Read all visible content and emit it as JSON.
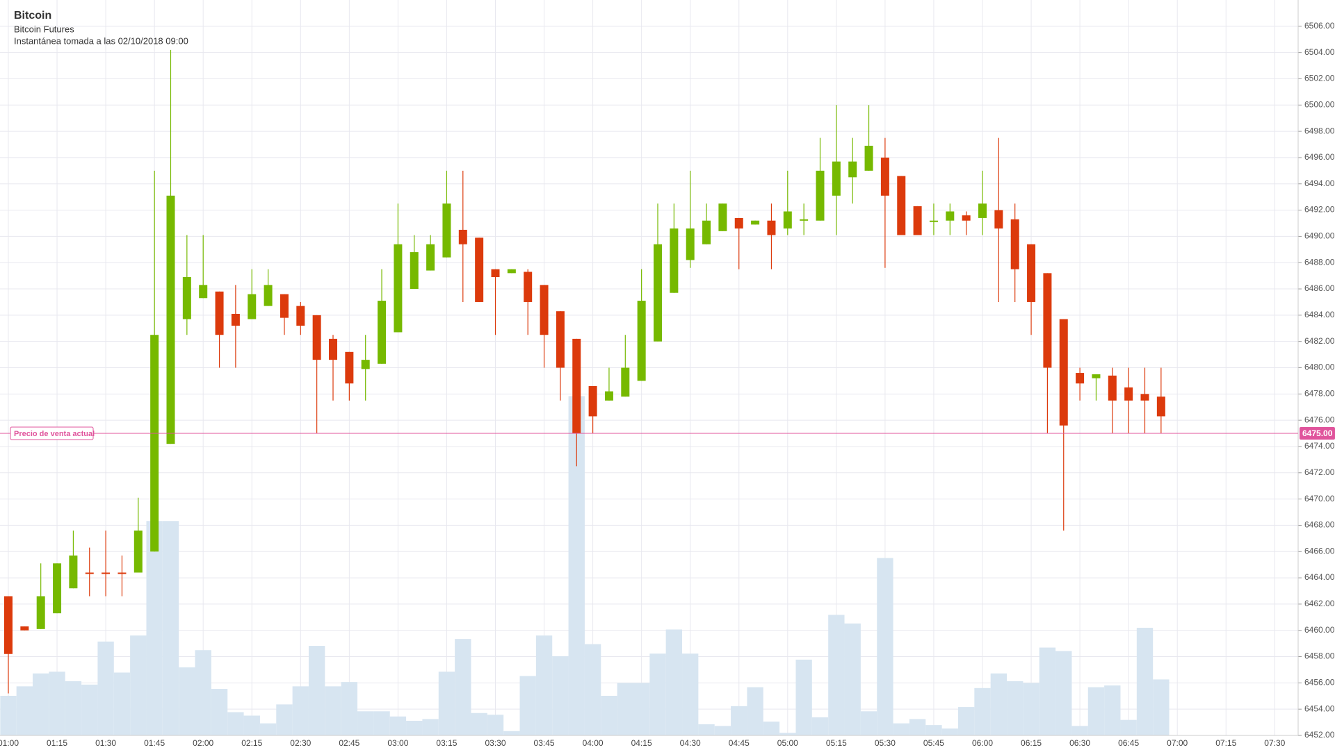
{
  "chart_data": {
    "type": "candlestick",
    "title": "Bitcoin",
    "subtitle": "Bitcoin Futures",
    "snapshot": "Instantánea tomada a las 02/10/2018 09:00",
    "xticks": [
      "01:00",
      "01:15",
      "01:30",
      "01:45",
      "02:00",
      "02:15",
      "02:30",
      "02:45",
      "03:00",
      "03:15",
      "03:30",
      "03:45",
      "04:00",
      "04:15",
      "04:30",
      "04:45",
      "05:00",
      "05:15",
      "05:30",
      "05:45",
      "06:00",
      "06:15",
      "06:30",
      "06:45",
      "07:00",
      "07:15",
      "07:30"
    ],
    "open": [
      6462.6,
      6460.3,
      6460.1,
      6461.3,
      6463.2,
      6464.4,
      6464.4,
      6464.4,
      6464.4,
      6466.0,
      6474.2,
      6483.7,
      6485.3,
      6485.8,
      6484.1,
      6483.7,
      6484.7,
      6485.6,
      6484.7,
      6484.0,
      6482.2,
      6481.2,
      6479.9,
      6480.3,
      6482.7,
      6486.0,
      6487.4,
      6488.4,
      6490.5,
      6489.9,
      6487.5,
      6487.2,
      6487.3,
      6486.3,
      6484.3,
      6482.2,
      6478.6,
      6477.5,
      6477.8,
      6479.0,
      6482.0,
      6485.7,
      6488.2,
      6489.4,
      6490.4,
      6491.4,
      6490.9,
      6491.2,
      6490.6,
      6491.2,
      6491.2,
      6493.1,
      6494.5,
      6495.0,
      6496.0,
      6494.6,
      6492.3,
      6491.1,
      6491.2,
      6491.6,
      6491.4,
      6492.0,
      6491.3,
      6489.4,
      6487.2,
      6483.7,
      6479.6,
      6479.2,
      6479.4,
      6478.5,
      6478.0,
      6477.8
    ],
    "high": [
      6462.6,
      6460.3,
      6465.1,
      6465.1,
      6467.6,
      6466.3,
      6467.6,
      6465.7,
      6470.1,
      6495.0,
      6504.2,
      6490.1,
      6490.1,
      6485.8,
      6486.3,
      6487.5,
      6487.5,
      6485.6,
      6485.0,
      6484.0,
      6482.5,
      6481.2,
      6482.5,
      6487.5,
      6492.5,
      6490.1,
      6490.1,
      6495.0,
      6495.0,
      6489.9,
      6487.5,
      6487.5,
      6487.5,
      6486.3,
      6484.3,
      6482.2,
      6478.6,
      6480.0,
      6482.5,
      6487.5,
      6492.5,
      6492.5,
      6495.0,
      6492.5,
      6492.5,
      6491.4,
      6491.2,
      6492.5,
      6495.0,
      6492.5,
      6497.5,
      6500.0,
      6497.5,
      6500.0,
      6497.5,
      6494.6,
      6492.3,
      6492.5,
      6492.5,
      6491.9,
      6495.0,
      6497.5,
      6492.5,
      6489.4,
      6487.2,
      6483.7,
      6480.0,
      6479.5,
      6480.0,
      6480.0,
      6480.0,
      6480.0
    ],
    "low": [
      6455.2,
      6460.0,
      6460.1,
      6461.3,
      6463.2,
      6462.6,
      6462.6,
      6462.6,
      6464.4,
      6466.0,
      6474.2,
      6482.5,
      6485.3,
      6480.0,
      6480.0,
      6483.7,
      6484.7,
      6482.5,
      6482.5,
      6475.0,
      6477.5,
      6477.5,
      6477.5,
      6480.3,
      6482.7,
      6486.0,
      6487.4,
      6488.4,
      6485.0,
      6485.0,
      6482.5,
      6487.2,
      6482.5,
      6480.0,
      6477.5,
      6472.5,
      6475.0,
      6477.5,
      6477.8,
      6479.0,
      6482.0,
      6485.7,
      6487.6,
      6489.4,
      6490.4,
      6487.5,
      6490.9,
      6487.5,
      6490.1,
      6490.1,
      6491.2,
      6490.1,
      6492.5,
      6495.0,
      6487.6,
      6490.1,
      6490.1,
      6490.1,
      6490.1,
      6490.1,
      6490.1,
      6485.0,
      6485.0,
      6482.5,
      6475.0,
      6467.6,
      6477.5,
      6477.5,
      6475.0,
      6475.0,
      6475.0,
      6475.0
    ],
    "close": [
      6458.2,
      6460.0,
      6462.6,
      6465.1,
      6465.7,
      6464.4,
      6464.4,
      6464.4,
      6467.6,
      6482.5,
      6493.1,
      6486.9,
      6486.3,
      6482.5,
      6483.2,
      6485.6,
      6486.3,
      6483.8,
      6483.2,
      6480.6,
      6480.6,
      6478.8,
      6480.6,
      6485.1,
      6489.4,
      6488.8,
      6489.4,
      6492.5,
      6489.4,
      6485.0,
      6486.9,
      6487.5,
      6485.0,
      6482.5,
      6480.0,
      6475.0,
      6476.3,
      6478.2,
      6480.0,
      6485.1,
      6489.4,
      6490.6,
      6490.6,
      6491.2,
      6492.5,
      6490.6,
      6491.2,
      6490.1,
      6491.9,
      6491.3,
      6495.0,
      6495.7,
      6495.7,
      6496.9,
      6493.1,
      6490.1,
      6490.1,
      6491.2,
      6491.9,
      6491.2,
      6492.5,
      6490.6,
      6487.5,
      6485.0,
      6480.0,
      6475.6,
      6478.8,
      6479.5,
      6477.5,
      6477.5,
      6477.5,
      6476.3
    ],
    "volume": [
      46,
      57,
      72,
      74,
      63,
      59,
      109,
      73,
      116,
      249,
      249,
      79,
      99,
      54,
      27,
      23,
      14,
      36,
      57,
      104,
      57,
      62,
      28,
      28,
      22,
      17,
      19,
      74,
      112,
      26,
      24,
      5,
      69,
      116,
      92,
      394,
      106,
      46,
      61,
      61,
      95,
      123,
      95,
      13,
      11,
      34,
      56,
      16,
      3,
      88,
      21,
      140,
      130,
      28,
      206,
      14,
      19,
      12,
      8,
      33,
      55,
      72,
      63,
      61,
      102,
      98,
      11,
      56,
      58,
      18,
      125,
      65
    ],
    "up_color": "#76b900",
    "down_color": "#dc3a0c",
    "volume_color": "#d7e5f1",
    "ylim": [
      6452,
      6508
    ],
    "yticks": [
      {
        "value": 6452,
        "label": "6452.00"
      },
      {
        "value": 6454,
        "label": "6454.00"
      },
      {
        "value": 6456,
        "label": "6456.00"
      },
      {
        "value": 6458,
        "label": "6458.00"
      },
      {
        "value": 6460,
        "label": "6460.00"
      },
      {
        "value": 6462,
        "label": "6462.00"
      },
      {
        "value": 6464,
        "label": "6464.00"
      },
      {
        "value": 6466,
        "label": "6466.00"
      },
      {
        "value": 6468,
        "label": "6468.00"
      },
      {
        "value": 6470,
        "label": "6470.00"
      },
      {
        "value": 6472,
        "label": "6472.00"
      },
      {
        "value": 6474,
        "label": "6474.00"
      },
      {
        "value": 6476,
        "label": "6476.00"
      },
      {
        "value": 6478,
        "label": "6478.00"
      },
      {
        "value": 6480,
        "label": "6480.00"
      },
      {
        "value": 6482,
        "label": "6482.00"
      },
      {
        "value": 6484,
        "label": "6484.00"
      },
      {
        "value": 6486,
        "label": "6486.00"
      },
      {
        "value": 6488,
        "label": "6488.00"
      },
      {
        "value": 6490,
        "label": "6490.00"
      },
      {
        "value": 6492,
        "label": "6492.00"
      },
      {
        "value": 6494,
        "label": "6494.00"
      },
      {
        "value": 6496,
        "label": "6496.00"
      },
      {
        "value": 6498,
        "label": "6498.00"
      },
      {
        "value": 6500,
        "label": "6500.00"
      },
      {
        "value": 6502,
        "label": "6502.00"
      },
      {
        "value": 6504,
        "label": "6504.00"
      },
      {
        "value": 6506,
        "label": "6506.00"
      }
    ],
    "current_price": {
      "name": "Precio de venta actual",
      "value": 6475,
      "label": "6475.00",
      "color": "#e0549c"
    },
    "grid": true
  }
}
